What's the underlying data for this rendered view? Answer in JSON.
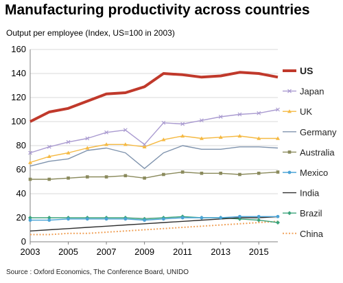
{
  "title": "Manufacturing productivity across countries",
  "subtitle": "Output per employee (Index, US=100 in 2003)",
  "source": "Source : Oxford Economics, The Conference Board, UNIDO",
  "chart_data": {
    "type": "line",
    "title": "Manufacturing productivity across countries",
    "ylabel": "Output per employee (Index, US=100 in 2003)",
    "xlabel": "",
    "ylim": [
      0,
      160
    ],
    "yticks": [
      0,
      20,
      40,
      60,
      80,
      100,
      120,
      140,
      160
    ],
    "xlim": [
      2003,
      2016
    ],
    "xticks": [
      2003,
      2005,
      2007,
      2009,
      2011,
      2013,
      2015
    ],
    "grid": "horizontal",
    "legend_position": "right",
    "x": [
      2003,
      2004,
      2005,
      2006,
      2007,
      2008,
      2009,
      2010,
      2011,
      2012,
      2013,
      2014,
      2015,
      2016
    ],
    "series": [
      {
        "name": "US",
        "color": "#c0392b",
        "style": "thick",
        "marker": "none",
        "values": [
          100,
          108,
          111,
          117,
          123,
          124,
          129,
          140,
          139,
          137,
          138,
          141,
          140,
          137
        ]
      },
      {
        "name": "Japan",
        "color": "#a99ad0",
        "style": "solid",
        "marker": "x",
        "values": [
          74,
          79,
          83,
          86,
          91,
          93,
          81,
          99,
          98,
          101,
          104,
          106,
          107,
          110
        ]
      },
      {
        "name": "UK",
        "color": "#f5b942",
        "style": "solid",
        "marker": "triangle",
        "values": [
          66,
          71,
          74,
          78,
          81,
          81,
          79,
          85,
          88,
          86,
          87,
          88,
          86,
          86
        ]
      },
      {
        "name": "Germany",
        "color": "#7f93ad",
        "style": "solid",
        "marker": "none",
        "values": [
          63,
          67,
          69,
          76,
          78,
          74,
          61,
          74,
          80,
          77,
          77,
          79,
          79,
          78
        ]
      },
      {
        "name": "Australia",
        "color": "#8a8a5c",
        "style": "solid",
        "marker": "square",
        "values": [
          52,
          52,
          53,
          54,
          54,
          55,
          53,
          56,
          58,
          57,
          57,
          56,
          57,
          58
        ]
      },
      {
        "name": "Mexico",
        "color": "#4aa3d6",
        "style": "solid",
        "marker": "circle",
        "values": [
          18,
          18,
          19,
          19,
          19,
          19,
          18,
          19,
          20,
          20,
          20,
          21,
          21,
          21
        ]
      },
      {
        "name": "India",
        "color": "#2f2f2f",
        "style": "solid",
        "marker": "none",
        "values": [
          9,
          10,
          11,
          12,
          13,
          14,
          15,
          16,
          17,
          18,
          19,
          20,
          20,
          21
        ]
      },
      {
        "name": "Brazil",
        "color": "#3aa37a",
        "style": "solid",
        "marker": "diamond",
        "values": [
          20,
          20,
          20,
          20,
          20,
          20,
          19,
          20,
          21,
          20,
          20,
          19,
          18,
          16
        ]
      },
      {
        "name": "China",
        "color": "#f0a25a",
        "style": "dotted",
        "marker": "none",
        "values": [
          6,
          6,
          7,
          7,
          8,
          9,
          10,
          11,
          12,
          13,
          14,
          15,
          16,
          17
        ]
      }
    ]
  }
}
